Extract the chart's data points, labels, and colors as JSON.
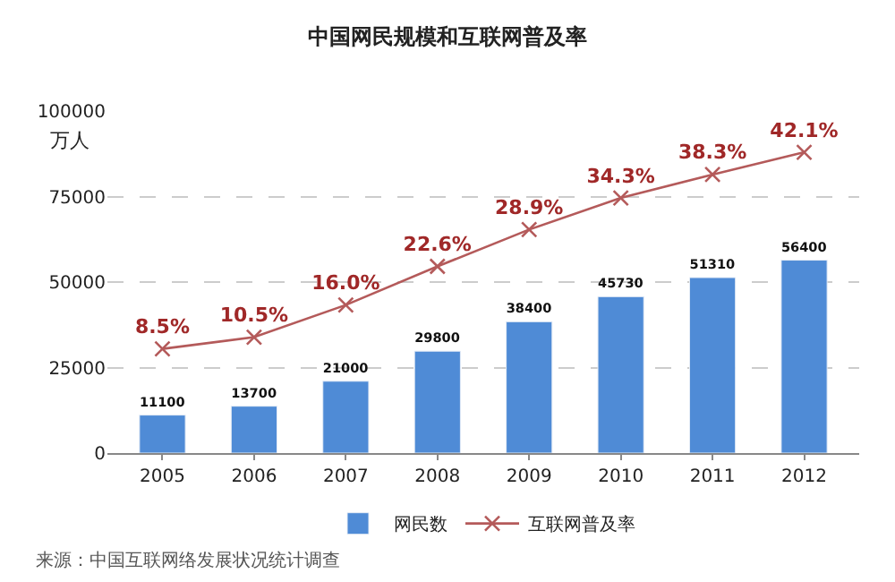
{
  "chart_data": {
    "type": "bar",
    "title": "中国网民规模和互联网普及率",
    "ylabel": "万人",
    "categories": [
      "2005",
      "2006",
      "2007",
      "2008",
      "2009",
      "2010",
      "2011",
      "2012"
    ],
    "series": [
      {
        "name": "网民数",
        "color": "#4f8bd6",
        "values": [
          11100,
          13700,
          21000,
          29800,
          38400,
          45730,
          51310,
          56400
        ]
      },
      {
        "name": "互联网普及率",
        "type": "line",
        "axis": "y2",
        "color": "#b45a5a",
        "marker": "cross",
        "values": [
          8.5,
          10.5,
          16.0,
          22.6,
          28.9,
          34.3,
          38.3,
          42.1
        ],
        "value_labels": [
          "8.5%",
          "10.5%",
          "16.0%",
          "22.6%",
          "28.9%",
          "34.3%",
          "38.3%",
          "42.1%"
        ]
      }
    ],
    "data_labels": true,
    "ylim": [
      0,
      100000
    ],
    "yticks": [
      0,
      25000,
      50000,
      75000,
      100000
    ],
    "grid": "y",
    "legend": "bottom",
    "annotations": [
      "来源：中国互联网络发展状况统计调查"
    ]
  }
}
